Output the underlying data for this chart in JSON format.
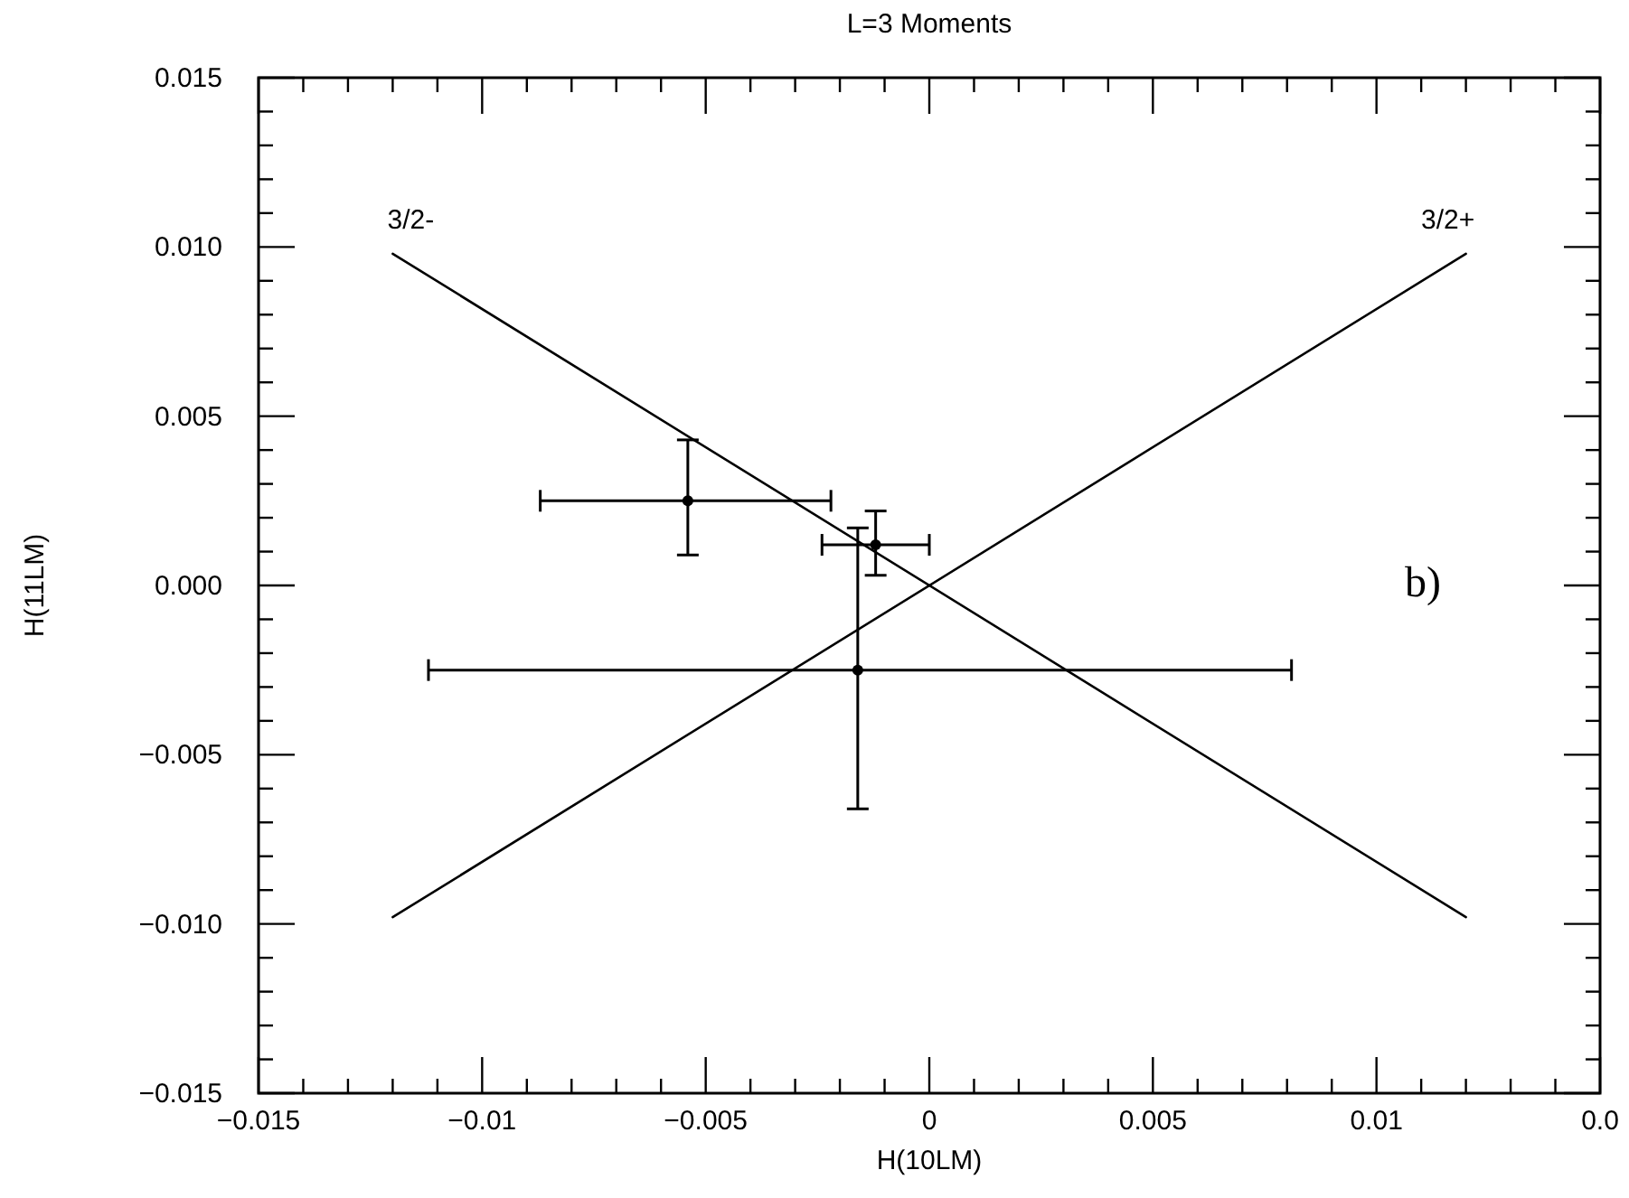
{
  "chart_data": {
    "type": "scatter",
    "title": "L=3 Moments",
    "xlabel": "H(10LM)",
    "ylabel": "H(11LM)",
    "annotations": [
      "b)"
    ],
    "xlim": [
      -0.015,
      0.015
    ],
    "ylim": [
      -0.015,
      0.015
    ],
    "xticks": [
      {
        "value": -0.015,
        "label": "−0.015"
      },
      {
        "value": -0.014,
        "label": null
      },
      {
        "value": -0.013,
        "label": null
      },
      {
        "value": -0.012,
        "label": null
      },
      {
        "value": -0.011,
        "label": null
      },
      {
        "value": -0.01,
        "label": "−0.01"
      },
      {
        "value": -0.009,
        "label": null
      },
      {
        "value": -0.008,
        "label": null
      },
      {
        "value": -0.007,
        "label": null
      },
      {
        "value": -0.006,
        "label": null
      },
      {
        "value": -0.005,
        "label": "−0.005"
      },
      {
        "value": -0.004,
        "label": null
      },
      {
        "value": -0.003,
        "label": null
      },
      {
        "value": -0.002,
        "label": null
      },
      {
        "value": -0.001,
        "label": null
      },
      0,
      {
        "value": 0.001,
        "label": null
      },
      {
        "value": 0.002,
        "label": null
      },
      {
        "value": 0.003,
        "label": null
      },
      {
        "value": 0.004,
        "label": null
      },
      0.005,
      {
        "value": 0.006,
        "label": null
      },
      {
        "value": 0.007,
        "label": null
      },
      {
        "value": 0.008,
        "label": null
      },
      {
        "value": 0.009,
        "label": null
      },
      0.01,
      {
        "value": 0.011,
        "label": null
      },
      {
        "value": 0.012,
        "label": null
      },
      {
        "value": 0.013,
        "label": null
      },
      {
        "value": 0.014,
        "label": null
      },
      {
        "value": 0.015,
        "label": "0.0"
      }
    ],
    "yticks": [
      {
        "value": -0.015,
        "label": "−0.015"
      },
      {
        "value": -0.014,
        "label": null
      },
      {
        "value": -0.013,
        "label": null
      },
      {
        "value": -0.012,
        "label": null
      },
      {
        "value": -0.011,
        "label": null
      },
      {
        "value": -0.01,
        "label": "−0.010"
      },
      {
        "value": -0.009,
        "label": null
      },
      {
        "value": -0.008,
        "label": null
      },
      {
        "value": -0.007,
        "label": null
      },
      {
        "value": -0.006,
        "label": null
      },
      {
        "value": -0.005,
        "label": "−0.005"
      },
      {
        "value": -0.004,
        "label": null
      },
      {
        "value": -0.003,
        "label": null
      },
      {
        "value": -0.002,
        "label": null
      },
      {
        "value": -0.001,
        "label": null
      },
      {
        "value": 0,
        "label": "0.000"
      },
      {
        "value": 0.001,
        "label": null
      },
      {
        "value": 0.002,
        "label": null
      },
      {
        "value": 0.003,
        "label": null
      },
      {
        "value": 0.004,
        "label": null
      },
      {
        "value": 0.005,
        "label": "0.005"
      },
      {
        "value": 0.006,
        "label": null
      },
      {
        "value": 0.007,
        "label": null
      },
      {
        "value": 0.008,
        "label": null
      },
      {
        "value": 0.009,
        "label": null
      },
      {
        "value": 0.01,
        "label": "0.010"
      },
      {
        "value": 0.011,
        "label": null
      },
      {
        "value": 0.012,
        "label": null
      },
      {
        "value": 0.013,
        "label": null
      },
      {
        "value": 0.014,
        "label": null
      },
      {
        "value": 0.015,
        "label": "0.015"
      }
    ],
    "grid": false,
    "series": [
      {
        "color": "#000000",
        "marker": "circle",
        "x": [
          -0.0054,
          -0.0012,
          -0.0016
        ],
        "values": [
          0.0025,
          0.0012,
          -0.0025
        ],
        "errors": [
          [
            0.0009,
            0.0043
          ],
          [
            0.0003,
            0.0022
          ],
          [
            -0.0066,
            0.0017
          ]
        ],
        "xerrors": [
          [
            -0.0087,
            -0.0022
          ],
          [
            -0.0024,
            0.0
          ],
          [
            -0.0112,
            0.0081
          ]
        ]
      },
      {
        "type": "line",
        "name": "3/2-",
        "color": "#000000",
        "marker": "none",
        "line_style": "solid",
        "x": [
          -0.012,
          0.012
        ],
        "values": [
          0.0098,
          -0.0098
        ]
      },
      {
        "type": "line",
        "name": "3/2+",
        "color": "#000000",
        "marker": "none",
        "line_style": "solid",
        "x": [
          -0.012,
          0.012
        ],
        "values": [
          -0.0098,
          0.0098
        ]
      }
    ]
  }
}
